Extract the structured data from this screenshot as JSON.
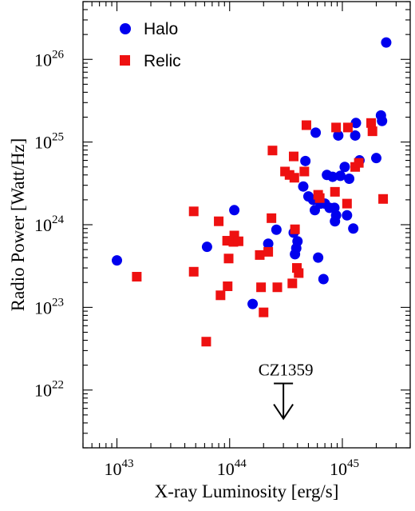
{
  "chart_data": {
    "type": "scatter",
    "title": "",
    "xlabel": "X-ray Luminosity [erg/s]",
    "ylabel": "Radio Power [Watt/Hz]",
    "x_scale": "log",
    "y_scale": "log",
    "xlim": [
      5e+42,
      4e+45
    ],
    "ylim": [
      2e+21,
      5e+26
    ],
    "x_ticks": [
      {
        "base": "10",
        "exp": "43",
        "value": 1e+43
      },
      {
        "base": "10",
        "exp": "44",
        "value": 1e+44
      },
      {
        "base": "10",
        "exp": "45",
        "value": 1e+45
      }
    ],
    "y_ticks": [
      {
        "base": "10",
        "exp": "22",
        "value": 1e+22
      },
      {
        "base": "10",
        "exp": "23",
        "value": 1e+23
      },
      {
        "base": "10",
        "exp": "24",
        "value": 1e+24
      },
      {
        "base": "10",
        "exp": "25",
        "value": 1e+25
      },
      {
        "base": "10",
        "exp": "26",
        "value": 1e+26
      }
    ],
    "grid": false,
    "legend_position": "top-left",
    "series": [
      {
        "name": "Halo",
        "marker": "circle",
        "color": "#0000ee",
        "points": [
          {
            "x": 1e+43,
            "y": 3.7e+23
          },
          {
            "x": 6.3e+43,
            "y": 5.4e+23
          },
          {
            "x": 1.1e+44,
            "y": 1.5e+24
          },
          {
            "x": 1.6e+44,
            "y": 1.1e+23
          },
          {
            "x": 2.2e+44,
            "y": 5.9e+23
          },
          {
            "x": 2.6e+44,
            "y": 8.7e+23
          },
          {
            "x": 3.7e+44,
            "y": 8e+23
          },
          {
            "x": 3.8e+44,
            "y": 4.4e+23
          },
          {
            "x": 3.9e+44,
            "y": 5.2e+23
          },
          {
            "x": 4e+44,
            "y": 6.3e+23
          },
          {
            "x": 4.5e+44,
            "y": 2.9e+24
          },
          {
            "x": 4.7e+44,
            "y": 5.9e+24
          },
          {
            "x": 5e+44,
            "y": 2.2e+24
          },
          {
            "x": 5.5e+44,
            "y": 2e+24
          },
          {
            "x": 5.7e+44,
            "y": 1.5e+24
          },
          {
            "x": 5.8e+44,
            "y": 1.3e+25
          },
          {
            "x": 6.1e+44,
            "y": 4e+23
          },
          {
            "x": 6.4e+44,
            "y": 1.8e+24
          },
          {
            "x": 6.8e+44,
            "y": 2.2e+23
          },
          {
            "x": 7e+44,
            "y": 1.8e+24
          },
          {
            "x": 7.3e+44,
            "y": 4e+24
          },
          {
            "x": 7.7e+44,
            "y": 1.6e+24
          },
          {
            "x": 8.2e+44,
            "y": 3.8e+24
          },
          {
            "x": 8.5e+44,
            "y": 1.6e+24
          },
          {
            "x": 8.6e+44,
            "y": 1.1e+24
          },
          {
            "x": 8.8e+44,
            "y": 1.3e+24
          },
          {
            "x": 9.2e+44,
            "y": 1.2e+25
          },
          {
            "x": 9.6e+44,
            "y": 3.9e+24
          },
          {
            "x": 1.05e+45,
            "y": 5e+24
          },
          {
            "x": 1.1e+45,
            "y": 1.3e+24
          },
          {
            "x": 1.15e+45,
            "y": 3.6e+24
          },
          {
            "x": 1.25e+45,
            "y": 9e+23
          },
          {
            "x": 1.3e+45,
            "y": 1.2e+25
          },
          {
            "x": 1.32e+45,
            "y": 1.7e+25
          },
          {
            "x": 1.42e+45,
            "y": 6e+24
          },
          {
            "x": 2e+45,
            "y": 6.4e+24
          },
          {
            "x": 2.2e+45,
            "y": 2.1e+25
          },
          {
            "x": 2.25e+45,
            "y": 1.8e+25
          },
          {
            "x": 2.45e+45,
            "y": 1.6e+26
          }
        ]
      },
      {
        "name": "Relic",
        "marker": "square",
        "color": "#ee1111",
        "points": [
          {
            "x": 1.5e+43,
            "y": 2.35e+23
          },
          {
            "x": 4.8e+43,
            "y": 1.45e+24
          },
          {
            "x": 4.8e+43,
            "y": 2.7e+23
          },
          {
            "x": 6.2e+43,
            "y": 3.85e+22
          },
          {
            "x": 8e+43,
            "y": 1.1e+24
          },
          {
            "x": 8.3e+43,
            "y": 1.4e+23
          },
          {
            "x": 9.5e+43,
            "y": 6.4e+23
          },
          {
            "x": 9.6e+43,
            "y": 1.8e+23
          },
          {
            "x": 9.8e+43,
            "y": 3.9e+23
          },
          {
            "x": 1.08e+44,
            "y": 6.2e+23
          },
          {
            "x": 1.1e+44,
            "y": 7.4e+23
          },
          {
            "x": 1.2e+44,
            "y": 6.3e+23
          },
          {
            "x": 1.85e+44,
            "y": 4.3e+23
          },
          {
            "x": 1.9e+44,
            "y": 1.75e+23
          },
          {
            "x": 2e+44,
            "y": 8.7e+22
          },
          {
            "x": 2.2e+44,
            "y": 4.7e+23
          },
          {
            "x": 2.35e+44,
            "y": 1.2e+24
          },
          {
            "x": 2.4e+44,
            "y": 7.9e+24
          },
          {
            "x": 2.65e+44,
            "y": 1.75e+23
          },
          {
            "x": 3.1e+44,
            "y": 4.4e+24
          },
          {
            "x": 3.4e+44,
            "y": 4e+24
          },
          {
            "x": 3.6e+44,
            "y": 1.95e+23
          },
          {
            "x": 3.7e+44,
            "y": 6.7e+24
          },
          {
            "x": 3.75e+44,
            "y": 3.7e+24
          },
          {
            "x": 3.8e+44,
            "y": 8.8e+23
          },
          {
            "x": 3.95e+44,
            "y": 3e+23
          },
          {
            "x": 4.1e+44,
            "y": 2.6e+23
          },
          {
            "x": 4.6e+44,
            "y": 4.4e+24
          },
          {
            "x": 4.8e+44,
            "y": 1.6e+25
          },
          {
            "x": 6.1e+44,
            "y": 2.3e+24
          },
          {
            "x": 6.3e+44,
            "y": 2.1e+24
          },
          {
            "x": 8.6e+44,
            "y": 2.5e+24
          },
          {
            "x": 8.8e+44,
            "y": 1.5e+25
          },
          {
            "x": 1.1e+45,
            "y": 1.8e+24
          },
          {
            "x": 1.12e+45,
            "y": 1.5e+25
          },
          {
            "x": 1.3e+45,
            "y": 5e+24
          },
          {
            "x": 1.4e+45,
            "y": 5.6e+24
          },
          {
            "x": 1.8e+45,
            "y": 1.7e+25
          },
          {
            "x": 1.85e+45,
            "y": 1.35e+25
          },
          {
            "x": 2.3e+45,
            "y": 2.05e+24
          }
        ]
      }
    ],
    "annotations": [
      {
        "text": "CZ1359",
        "type": "upper-limit-arrow",
        "x": 3e+44,
        "y_top": 1.2e+22,
        "y_tip": 4.5e+21
      }
    ]
  }
}
